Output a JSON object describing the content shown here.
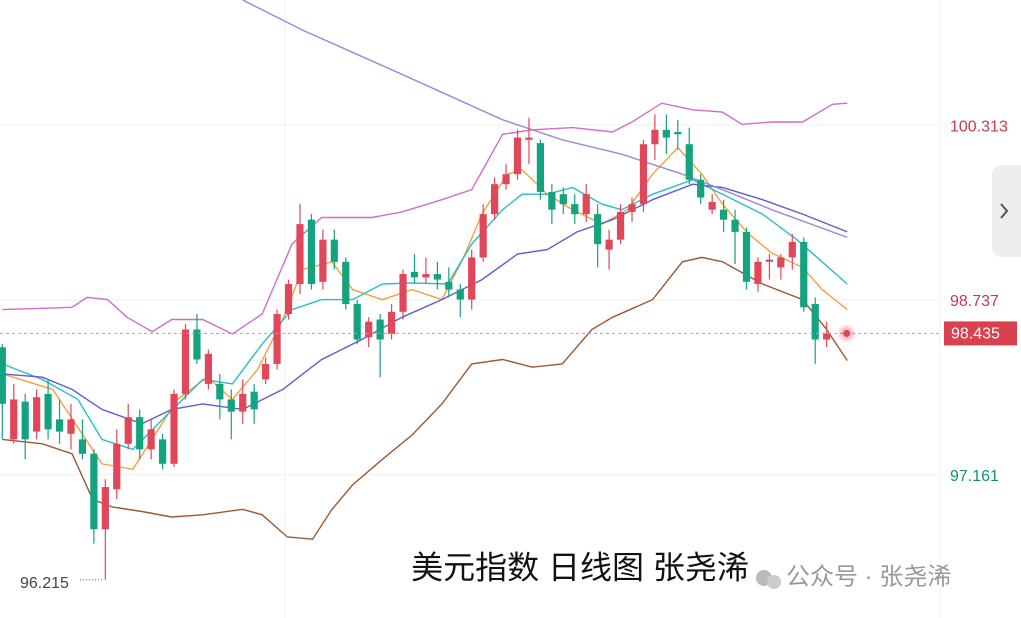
{
  "chart_data": {
    "type": "candlestick",
    "title": "美元指数 日线图 张尧浠",
    "watermark": "公众号 · 张尧浠",
    "up_color": "#e0475a",
    "down_color": "#14a37f",
    "xlim": [
      -0.2,
      81.9
    ],
    "ylim": [
      95.87,
      101.44
    ],
    "yticks": [
      97.161,
      98.737,
      100.313
    ],
    "grid": true,
    "open": [
      98.31,
      97.48,
      97.82,
      97.55,
      97.89,
      97.66,
      97.53,
      97.48,
      97.35,
      96.67,
      97.03,
      97.44,
      97.68,
      97.39,
      97.48,
      97.26,
      97.89,
      98.47,
      97.98,
      97.98,
      97.84,
      97.73,
      97.91,
      98.02,
      98.16,
      98.61,
      98.88,
      99.46,
      98.9,
      99.28,
      99.08,
      98.7,
      98.4,
      98.56,
      98.43,
      98.63,
      98.99,
      98.94,
      98.97,
      98.9,
      98.83,
      98.74,
      99.12,
      99.51,
      99.78,
      99.87,
      100.18,
      100.15,
      99.71,
      99.69,
      99.6,
      99.51,
      99.51,
      99.19,
      99.28,
      99.53,
      99.6,
      100.14,
      100.27,
      100.25,
      100.14,
      99.82,
      99.55,
      99.55,
      99.46,
      99.35,
      98.88,
      99.08,
      99.03,
      99.12,
      99.26,
      98.7,
      98.38
    ],
    "high": [
      98.34,
      97.98,
      97.89,
      97.93,
      98.02,
      97.84,
      97.8,
      97.66,
      97.39,
      97.12,
      97.57,
      97.8,
      97.75,
      97.66,
      97.53,
      97.93,
      98.52,
      98.61,
      98.29,
      98.07,
      97.93,
      98.02,
      97.98,
      98.22,
      98.65,
      98.92,
      99.6,
      99.51,
      99.37,
      99.37,
      99.12,
      98.74,
      98.58,
      98.61,
      98.7,
      99.01,
      99.15,
      99.12,
      99.08,
      99.03,
      98.88,
      99.19,
      99.6,
      99.84,
      99.96,
      100.27,
      100.38,
      100.18,
      99.78,
      99.75,
      99.69,
      99.78,
      99.6,
      99.37,
      99.6,
      99.66,
      100.18,
      100.41,
      100.41,
      100.36,
      100.29,
      99.87,
      99.69,
      99.64,
      99.55,
      99.39,
      99.12,
      99.15,
      99.15,
      99.33,
      99.3,
      98.76,
      98.54
    ],
    "low": [
      97.48,
      97.44,
      97.3,
      97.48,
      97.48,
      97.44,
      97.39,
      97.3,
      96.54,
      96.215,
      96.94,
      97.39,
      97.3,
      97.3,
      97.21,
      97.23,
      97.84,
      98.16,
      97.93,
      97.66,
      97.48,
      97.62,
      97.62,
      97.98,
      98.11,
      98.56,
      98.79,
      98.83,
      98.83,
      99.01,
      98.65,
      98.34,
      98.31,
      98.04,
      98.38,
      98.56,
      98.88,
      98.88,
      98.83,
      98.76,
      98.58,
      98.65,
      99.08,
      99.46,
      99.73,
      99.82,
      99.96,
      99.64,
      99.42,
      99.51,
      99.42,
      99.44,
      99.03,
      99.01,
      99.24,
      99.44,
      99.53,
      100.0,
      100.05,
      100.09,
      99.78,
      99.6,
      99.51,
      99.35,
      99.06,
      98.83,
      98.81,
      98.92,
      98.92,
      99.01,
      98.63,
      98.16,
      98.31
    ],
    "close": [
      97.8,
      97.84,
      97.48,
      97.86,
      97.57,
      97.55,
      97.66,
      97.35,
      96.67,
      97.05,
      97.44,
      97.68,
      97.39,
      97.57,
      97.26,
      97.89,
      98.47,
      98.2,
      98.25,
      97.84,
      97.73,
      97.89,
      97.75,
      98.16,
      98.61,
      98.88,
      99.42,
      98.88,
      99.28,
      99.08,
      98.7,
      98.38,
      98.54,
      98.38,
      98.63,
      98.97,
      98.94,
      98.97,
      98.92,
      98.83,
      98.74,
      99.12,
      99.51,
      99.78,
      99.87,
      100.2,
      100.2,
      99.71,
      99.55,
      99.6,
      99.51,
      99.69,
      99.24,
      99.28,
      99.53,
      99.6,
      100.14,
      100.27,
      100.2,
      100.23,
      99.82,
      99.66,
      99.62,
      99.46,
      99.35,
      98.9,
      99.08,
      99.1,
      99.12,
      99.26,
      98.67,
      98.38,
      98.435
    ],
    "lines": [
      {
        "color": "#f5a040",
        "x": [
          0,
          4.4,
          8.7,
          11.4,
          15.3,
          17.9,
          20.1,
          22.3,
          24.5,
          26.2,
          28.8,
          30.6,
          33.2,
          35.8,
          38.4,
          40.2,
          41.9,
          44.1,
          45.4,
          47.6,
          49.8,
          52.4,
          54.6,
          56.8,
          59.0,
          61.1,
          62.9,
          65.1,
          67.2,
          69.9,
          71.6,
          73.8
        ],
        "values": [
          98.07,
          97.93,
          97.26,
          97.21,
          97.84,
          98.04,
          97.84,
          98.11,
          98.56,
          99.01,
          99.08,
          98.83,
          98.74,
          98.83,
          98.74,
          99.1,
          99.51,
          99.87,
          99.91,
          99.69,
          99.55,
          99.42,
          99.55,
          99.87,
          100.11,
          99.87,
          99.6,
          99.34,
          99.16,
          99.03,
          98.83,
          98.65
        ]
      },
      {
        "color": "#26bfc8",
        "x": [
          0,
          3.5,
          6.6,
          8.7,
          11.4,
          14.0,
          17.5,
          20.1,
          22.7,
          25.3,
          27.9,
          30.6,
          33.2,
          35.8,
          38.9,
          41.0,
          43.7,
          45.4,
          47.6,
          49.8,
          52.4,
          54.1,
          56.8,
          60.3,
          62.9,
          66.4,
          69.4,
          71.6,
          73.8
        ],
        "values": [
          98.16,
          98.02,
          97.84,
          97.48,
          97.39,
          97.66,
          98.02,
          97.98,
          98.34,
          98.65,
          98.74,
          98.74,
          98.88,
          98.89,
          98.88,
          99.24,
          99.55,
          99.69,
          99.69,
          99.75,
          99.6,
          99.55,
          99.69,
          99.82,
          99.69,
          99.51,
          99.28,
          99.08,
          98.88
        ]
      },
      {
        "color": "#5a5fd0",
        "x": [
          0,
          3.5,
          6.1,
          8.7,
          12.2,
          14.8,
          17.5,
          21.0,
          24.5,
          27.9,
          31.4,
          34.9,
          38.4,
          41.9,
          45.0,
          47.6,
          50.2,
          53.3,
          56.8,
          60.3,
          62.9,
          66.4,
          69.9,
          73.8
        ],
        "values": [
          98.07,
          98.04,
          97.93,
          97.75,
          97.62,
          97.75,
          97.8,
          97.75,
          97.93,
          98.2,
          98.38,
          98.58,
          98.74,
          98.92,
          99.15,
          99.19,
          99.35,
          99.46,
          99.64,
          99.78,
          99.75,
          99.64,
          99.51,
          99.35
        ]
      },
      {
        "color": "#9a88d8",
        "x": [
          21.0,
          26.2,
          34.9,
          43.7,
          48.9,
          54.1,
          59.4,
          62.9,
          67.2,
          73.8
        ],
        "values": [
          101.44,
          101.17,
          100.77,
          100.36,
          100.18,
          100.05,
          99.87,
          99.73,
          99.55,
          99.3
        ]
      },
      {
        "color": "#d26ec6",
        "x": [
          0,
          6.1,
          7.4,
          9.2,
          10.9,
          13.1,
          14.8,
          17.5,
          20.1,
          22.7,
          25.3,
          27.9,
          32.3,
          34.9,
          38.4,
          41.0,
          43.7,
          46.3,
          49.8,
          53.3,
          55.0,
          57.6,
          60.3,
          62.9,
          64.6,
          67.2,
          69.9,
          72.5,
          73.8
        ],
        "values": [
          98.65,
          98.67,
          98.76,
          98.74,
          98.58,
          98.45,
          98.56,
          98.56,
          98.43,
          98.61,
          99.24,
          99.48,
          99.48,
          99.53,
          99.64,
          99.73,
          100.23,
          100.27,
          100.29,
          100.25,
          100.34,
          100.51,
          100.45,
          100.43,
          100.32,
          100.34,
          100.34,
          100.5,
          100.51
        ]
      },
      {
        "color": "#9a5a32",
        "x": [
          0,
          3.5,
          6.1,
          7.9,
          9.6,
          12.2,
          14.8,
          17.5,
          21.0,
          22.7,
          24.9,
          27.1,
          28.8,
          30.6,
          33.2,
          35.8,
          38.4,
          41.0,
          43.7,
          46.3,
          48.9,
          51.5,
          53.3,
          56.8,
          59.4,
          61.1,
          62.9,
          66.4,
          69.9,
          72.0,
          73.8
        ],
        "values": [
          97.48,
          97.44,
          97.35,
          96.94,
          96.87,
          96.83,
          96.78,
          96.8,
          96.85,
          96.8,
          96.6,
          96.58,
          96.85,
          97.07,
          97.3,
          97.52,
          97.8,
          98.16,
          98.2,
          98.13,
          98.16,
          98.47,
          98.58,
          98.74,
          99.08,
          99.12,
          99.08,
          98.88,
          98.74,
          98.47,
          98.19
        ]
      }
    ]
  }
}
